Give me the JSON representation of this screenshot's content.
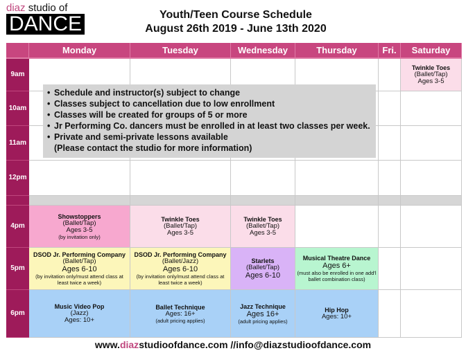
{
  "logo": {
    "top_accent": "diaz",
    "top_rest": " studio of",
    "box": "DANCE"
  },
  "title": {
    "line1": "Youth/Teen Course Schedule",
    "line2": "August 26th 2019 - June 13th 2020"
  },
  "colors": {
    "header": "#c8467f",
    "time_column": "#9e1b5a",
    "pink_dark": "#f7a8cf",
    "pink_light": "#fbdde9",
    "yellow": "#fcf6ba",
    "purple": "#d9b3f7",
    "green": "#b8f5d0",
    "blue": "#a9d1f7",
    "gray": "#d4d4d4"
  },
  "days": [
    "Monday",
    "Tuesday",
    "Wednesday",
    "Thursday",
    "Fri.",
    "Saturday"
  ],
  "times": [
    "9am",
    "10am",
    "11am",
    "12pm",
    "",
    "4pm",
    "5pm",
    "6pm"
  ],
  "classes": [
    {
      "row": 0,
      "day": 5,
      "name": "Twinkle Toes",
      "style": "(Ballet/Tap)",
      "ages": "Ages 3-5",
      "note": "",
      "color": "#fbdde9"
    },
    {
      "row": 5,
      "day": 0,
      "name": "Showstoppers",
      "style": "(Ballet/Tap)",
      "ages": "Ages 3-5",
      "note": "(by invitation only)",
      "color": "#f7a8cf"
    },
    {
      "row": 5,
      "day": 1,
      "name": "Twinkle Toes",
      "style": "(Ballet/Tap)",
      "ages": "Ages 3-5",
      "note": "",
      "color": "#fbdde9"
    },
    {
      "row": 5,
      "day": 2,
      "name": "Twinkle Toes",
      "style": "(Ballet/Tap)",
      "ages": "Ages 3-5",
      "note": "",
      "color": "#fbdde9"
    },
    {
      "row": 6,
      "day": 0,
      "name": "DSOD Jr. Performing Company",
      "style": "(Ballet/Tap)",
      "ages": "Ages 6-10",
      "note": "(by invitation only/must attend class at least twice a week)",
      "color": "#fcf6ba",
      "big": true
    },
    {
      "row": 6,
      "day": 1,
      "name": "DSOD Jr. Performing Company",
      "style": "(Ballet/Jazz)",
      "ages": "Ages 6-10",
      "note": "(by invitation only/must attend class at least twice a week)",
      "color": "#fcf6ba",
      "big": true
    },
    {
      "row": 6,
      "day": 2,
      "name": "Starlets",
      "style": "(Ballet/Tap)",
      "ages": "Ages 6-10",
      "note": "",
      "color": "#d9b3f7",
      "big": true
    },
    {
      "row": 6,
      "day": 3,
      "name": "Musical Theatre Dance",
      "style": "",
      "ages": "Ages 6+",
      "note": "(must also be enrolled in one add'l ballet combination class)",
      "color": "#b8f5d0",
      "big": true
    },
    {
      "row": 7,
      "day": 0,
      "name": "Music Video Pop",
      "style": "(Jazz)",
      "ages": "Ages: 10+",
      "note": "",
      "color": "#a9d1f7"
    },
    {
      "row": 7,
      "day": 1,
      "name": "Ballet Technique",
      "style": "",
      "ages": "Ages: 16+",
      "note": "(adult pricing applies)",
      "color": "#a9d1f7"
    },
    {
      "row": 7,
      "day": 2,
      "name": "Jazz Technique",
      "style": "",
      "ages": "Ages 16+",
      "note": "(adult pricing applies)",
      "color": "#a9d1f7",
      "big": true
    },
    {
      "row": 7,
      "day": 3,
      "name": "Hip Hop",
      "style": "",
      "ages": "Ages: 10+",
      "note": "",
      "color": "#a9d1f7"
    }
  ],
  "notes": [
    "Schedule and instructor(s) subject to change",
    "Classes subject to cancellation due to low enrollment",
    "Classes will be created for groups of 5 or more",
    "Jr Performing Co. dancers must be enrolled in at least two classes per week.",
    "Private and semi-private lessons available"
  ],
  "notes_continuation": "(Please contact the studio for more information)",
  "footer": {
    "pre": "www.",
    "accent": "diaz",
    "post": "studioofdance.com //info@diazstudioofdance.com"
  }
}
